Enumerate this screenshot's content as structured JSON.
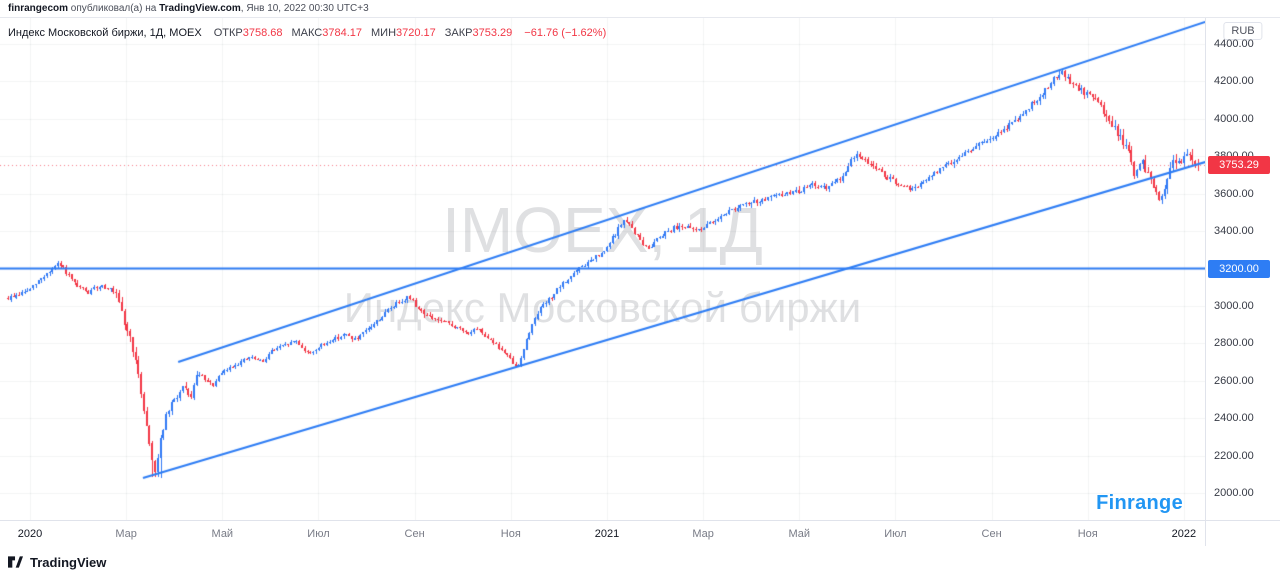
{
  "attribution": {
    "user": "finrangecom",
    "middle": " опубликовал(а) на ",
    "site": "TradingView.com",
    "suffix": ", Янв 10, 2022 00:30 UTC+3"
  },
  "legend": {
    "symbol": "Индекс Московской биржи, 1Д, MOEX",
    "fields": [
      {
        "label": "ОТКР",
        "value": "3758.68"
      },
      {
        "label": "МАКС",
        "value": "3784.17"
      },
      {
        "label": "МИН",
        "value": "3720.17"
      },
      {
        "label": "ЗАКР",
        "value": "3753.29"
      }
    ],
    "change": "−61.76 (−1.62%)"
  },
  "watermark": {
    "title": "IMOEX, 1Д",
    "subtitle": "Индекс Московской биржи"
  },
  "price_axis": {
    "currency": "RUB",
    "last_price_label": "3753.29",
    "level_label": "3200.00"
  },
  "time_axis": {
    "ticks": [
      {
        "label": "2020",
        "year": true
      },
      {
        "label": "Мар"
      },
      {
        "label": "Май"
      },
      {
        "label": "Июл"
      },
      {
        "label": "Сен"
      },
      {
        "label": "Ноя"
      },
      {
        "label": "2021",
        "year": true
      },
      {
        "label": "Мар"
      },
      {
        "label": "Май"
      },
      {
        "label": "Июл"
      },
      {
        "label": "Сен"
      },
      {
        "label": "Ноя"
      },
      {
        "label": "2022",
        "year": true
      }
    ]
  },
  "branding": {
    "finrange": "Finrange",
    "tradingview": "TradingView"
  },
  "colors": {
    "accent_blue": "#2e7df4",
    "candle_up": "#3179f5",
    "candle_down": "#f23645",
    "last_badge_bg": "#f23645",
    "level_badge_bg": "#2e7df4",
    "grid": "rgba(42,46,57,0.055)"
  },
  "chart_data": {
    "type": "candlestick",
    "symbol": "IMOEX",
    "name": "Индекс Московской биржи",
    "timeframe": "1Д",
    "exchange": "MOEX",
    "currency": "RUB",
    "title": "Индекс Московской биржи, 1Д, MOEX",
    "x_range": [
      "Дек 2019",
      "Янв 2022"
    ],
    "ylim": [
      1950,
      4560
    ],
    "grid": true,
    "bars": 430,
    "last": {
      "open": 3758.68,
      "high": 3784.17,
      "low": 3720.17,
      "close": 3753.29,
      "change": -61.76,
      "change_pct": -1.62
    },
    "y_ticks": [
      2000,
      2200,
      2400,
      2600,
      2800,
      3000,
      3200,
      3400,
      3600,
      3800,
      4000,
      4200,
      4400
    ],
    "price_path": [
      [
        0.0,
        3040
      ],
      [
        0.01,
        3065
      ],
      [
        0.019,
        3090
      ],
      [
        0.03,
        3160
      ],
      [
        0.043,
        3225
      ],
      [
        0.05,
        3170
      ],
      [
        0.057,
        3105
      ],
      [
        0.068,
        3070
      ],
      [
        0.078,
        3115
      ],
      [
        0.086,
        3090
      ],
      [
        0.0915,
        3045
      ],
      [
        0.098,
        2905
      ],
      [
        0.104,
        2800
      ],
      [
        0.109,
        2640
      ],
      [
        0.115,
        2420
      ],
      [
        0.121,
        2180
      ],
      [
        0.124,
        2110
      ],
      [
        0.128,
        2290
      ],
      [
        0.133,
        2410
      ],
      [
        0.14,
        2500
      ],
      [
        0.147,
        2560
      ],
      [
        0.153,
        2505
      ],
      [
        0.16,
        2645
      ],
      [
        0.166,
        2600
      ],
      [
        0.172,
        2575
      ],
      [
        0.181,
        2650
      ],
      [
        0.192,
        2690
      ],
      [
        0.203,
        2725
      ],
      [
        0.214,
        2700
      ],
      [
        0.221,
        2760
      ],
      [
        0.232,
        2785
      ],
      [
        0.242,
        2815
      ],
      [
        0.252,
        2745
      ],
      [
        0.262,
        2780
      ],
      [
        0.273,
        2825
      ],
      [
        0.283,
        2845
      ],
      [
        0.293,
        2820
      ],
      [
        0.302,
        2870
      ],
      [
        0.312,
        2930
      ],
      [
        0.321,
        2985
      ],
      [
        0.33,
        3030
      ],
      [
        0.337,
        3050
      ],
      [
        0.345,
        2985
      ],
      [
        0.353,
        2945
      ],
      [
        0.363,
        2920
      ],
      [
        0.374,
        2895
      ],
      [
        0.385,
        2855
      ],
      [
        0.3955,
        2870
      ],
      [
        0.406,
        2820
      ],
      [
        0.417,
        2750
      ],
      [
        0.428,
        2665
      ],
      [
        0.436,
        2820
      ],
      [
        0.444,
        2960
      ],
      [
        0.455,
        3035
      ],
      [
        0.4645,
        3105
      ],
      [
        0.474,
        3165
      ],
      [
        0.483,
        3215
      ],
      [
        0.492,
        3250
      ],
      [
        0.501,
        3285
      ],
      [
        0.51,
        3380
      ],
      [
        0.517,
        3460
      ],
      [
        0.524,
        3420
      ],
      [
        0.531,
        3355
      ],
      [
        0.5375,
        3300
      ],
      [
        0.545,
        3360
      ],
      [
        0.553,
        3400
      ],
      [
        0.56,
        3420
      ],
      [
        0.566,
        3430
      ],
      [
        0.576,
        3405
      ],
      [
        0.585,
        3420
      ],
      [
        0.596,
        3470
      ],
      [
        0.6065,
        3510
      ],
      [
        0.617,
        3535
      ],
      [
        0.627,
        3555
      ],
      [
        0.637,
        3570
      ],
      [
        0.647,
        3590
      ],
      [
        0.657,
        3605
      ],
      [
        0.667,
        3620
      ],
      [
        0.677,
        3650
      ],
      [
        0.6875,
        3630
      ],
      [
        0.695,
        3655
      ],
      [
        0.703,
        3705
      ],
      [
        0.712,
        3815
      ],
      [
        0.719,
        3780
      ],
      [
        0.727,
        3755
      ],
      [
        0.734,
        3710
      ],
      [
        0.74,
        3680
      ],
      [
        0.748,
        3645
      ],
      [
        0.756,
        3625
      ],
      [
        0.7645,
        3635
      ],
      [
        0.773,
        3680
      ],
      [
        0.781,
        3720
      ],
      [
        0.79,
        3760
      ],
      [
        0.798,
        3790
      ],
      [
        0.805,
        3820
      ],
      [
        0.8135,
        3855
      ],
      [
        0.822,
        3880
      ],
      [
        0.8295,
        3905
      ],
      [
        0.838,
        3950
      ],
      [
        0.846,
        3990
      ],
      [
        0.854,
        4035
      ],
      [
        0.862,
        4085
      ],
      [
        0.87,
        4145
      ],
      [
        0.877,
        4195
      ],
      [
        0.884,
        4255
      ],
      [
        0.89,
        4215
      ],
      [
        0.896,
        4175
      ],
      [
        0.903,
        4145
      ],
      [
        0.9105,
        4120
      ],
      [
        0.916,
        4085
      ],
      [
        0.921,
        4045
      ],
      [
        0.926,
        3995
      ],
      [
        0.9307,
        3935
      ],
      [
        0.936,
        3880
      ],
      [
        0.94,
        3855
      ],
      [
        0.944,
        3780
      ],
      [
        0.947,
        3685
      ],
      [
        0.95,
        3745
      ],
      [
        0.953,
        3765
      ],
      [
        0.956,
        3725
      ],
      [
        0.959,
        3690
      ],
      [
        0.963,
        3640
      ],
      [
        0.966,
        3600
      ],
      [
        0.9693,
        3560
      ],
      [
        0.972,
        3620
      ],
      [
        0.975,
        3680
      ],
      [
        0.9774,
        3740
      ],
      [
        0.9794,
        3790
      ],
      [
        0.982,
        3775
      ],
      [
        0.985,
        3765
      ],
      [
        0.987,
        3800
      ],
      [
        0.9895,
        3830
      ],
      [
        0.992,
        3815
      ],
      [
        0.995,
        3800
      ],
      [
        0.9975,
        3775
      ],
      [
        1.0,
        3753.29
      ]
    ],
    "annotations": {
      "channel_upper": {
        "from": [
          0.143,
          2700
        ],
        "to": [
          1.006,
          4518
        ]
      },
      "channel_lower": {
        "from": [
          0.1134,
          2080
        ],
        "to": [
          1.006,
          3769
        ]
      },
      "horizontal_level": 3200,
      "last_price_line": 3753.29
    }
  }
}
